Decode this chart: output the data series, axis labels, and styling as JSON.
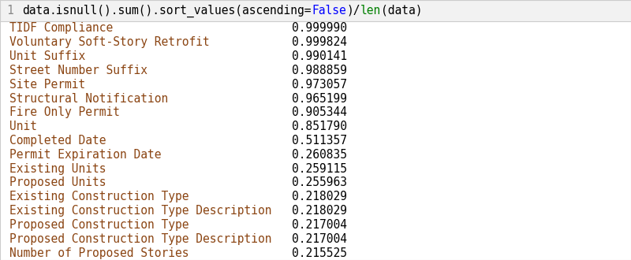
{
  "code_line_parts": [
    {
      "text": "data",
      "color": "#000000"
    },
    {
      "text": ".isnull().sum().sort_values(ascending=",
      "color": "#000000"
    },
    {
      "text": "False",
      "color": "#0000FF"
    },
    {
      "text": ")/",
      "color": "#000000"
    },
    {
      "text": "len",
      "color": "#008000"
    },
    {
      "text": "(data)",
      "color": "#000000"
    }
  ],
  "line_number": "1",
  "rows": [
    [
      "TIDF Compliance",
      "0.999990"
    ],
    [
      "Voluntary Soft-Story Retrofit",
      "0.999824"
    ],
    [
      "Unit Suffix",
      "0.990141"
    ],
    [
      "Street Number Suffix",
      "0.988859"
    ],
    [
      "Site Permit",
      "0.973057"
    ],
    [
      "Structural Notification",
      "0.965199"
    ],
    [
      "Fire Only Permit",
      "0.905344"
    ],
    [
      "Unit",
      "0.851790"
    ],
    [
      "Completed Date",
      "0.511357"
    ],
    [
      "Permit Expiration Date",
      "0.260835"
    ],
    [
      "Existing Units",
      "0.259115"
    ],
    [
      "Proposed Units",
      "0.255963"
    ],
    [
      "Existing Construction Type",
      "0.218029"
    ],
    [
      "Existing Construction Type Description",
      "0.218029"
    ],
    [
      "Proposed Construction Type",
      "0.217004"
    ],
    [
      "Proposed Construction Type Description",
      "0.217004"
    ],
    [
      "Number of Proposed Stories",
      "0.215525"
    ]
  ],
  "label_color": "#8B4513",
  "value_color": "#000000",
  "header_bg": "#F2F2F2",
  "body_bg": "#FFFFFF",
  "border_color": "#CCCCCC",
  "line_num_color": "#888888",
  "font_size": 10.5,
  "header_font_size": 10.5,
  "figwidth": 8.0,
  "figheight": 3.3
}
